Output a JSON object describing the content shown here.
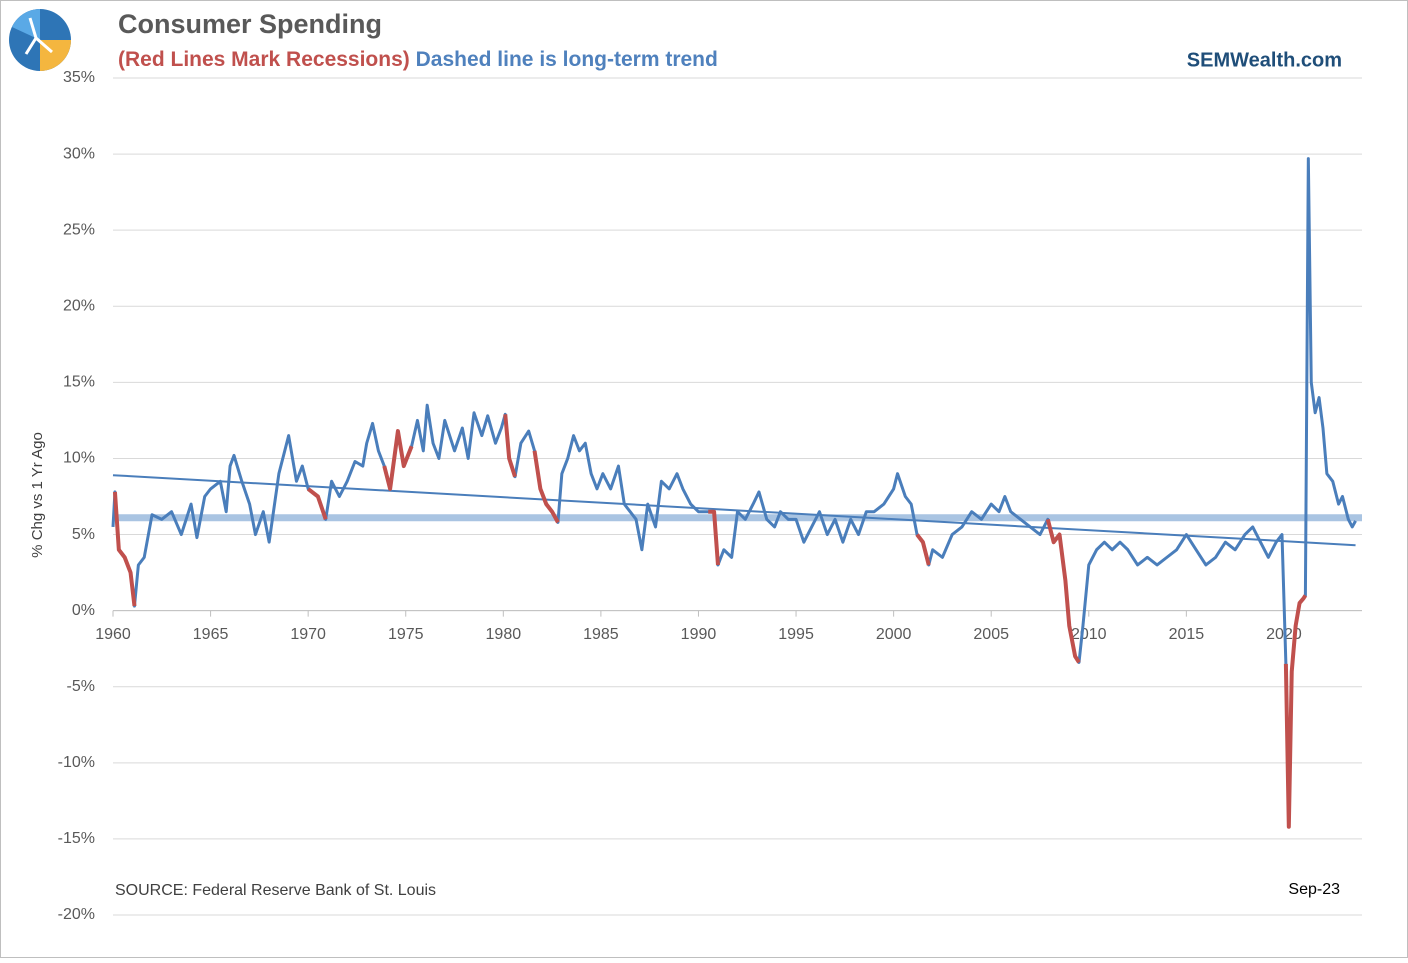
{
  "chart_data": {
    "type": "line",
    "title": "Consumer Spending",
    "subtitle_recessions": "(Red Lines Mark Recessions)",
    "subtitle_trend": "Dashed line is long-term trend",
    "brand": "SEMWealth.com",
    "y_label": "% Chg vs 1 Yr Ago",
    "source": "SOURCE:  Federal Reserve Bank of St. Louis",
    "last_date_label": "Sep-23",
    "xlim": [
      1960,
      2024
    ],
    "xticks": [
      1960,
      1965,
      1970,
      1975,
      1980,
      1985,
      1990,
      1995,
      2000,
      2005,
      2010,
      2015,
      2020
    ],
    "ylim": [
      -20,
      35
    ],
    "yticks": [
      {
        "value": -20,
        "label": "-20%"
      },
      {
        "value": -15,
        "label": "-15%"
      },
      {
        "value": -10,
        "label": "-10%"
      },
      {
        "value": -5,
        "label": "-5%"
      },
      {
        "value": 0,
        "label": "0%"
      },
      {
        "value": 5,
        "label": "5%"
      },
      {
        "value": 10,
        "label": "10%"
      },
      {
        "value": 15,
        "label": "15%"
      },
      {
        "value": 20,
        "label": "20%"
      },
      {
        "value": 25,
        "label": "25%"
      },
      {
        "value": 30,
        "label": "30%"
      },
      {
        "value": 35,
        "label": "35%"
      }
    ],
    "grid": true,
    "color": "#4a7ebb",
    "recession_color": "#c0504d",
    "recessions": [
      [
        1960.1,
        1961.1
      ],
      [
        1969.9,
        1970.9
      ],
      [
        1973.9,
        1975.3
      ],
      [
        1980.0,
        1980.6
      ],
      [
        1981.5,
        1982.9
      ],
      [
        1990.5,
        1991.1
      ],
      [
        2001.2,
        2001.9
      ],
      [
        2007.9,
        2009.5
      ],
      [
        2020.1,
        2021.1
      ]
    ],
    "x": [
      1960.0,
      1960.1,
      1960.3,
      1960.6,
      1960.9,
      1961.1,
      1961.3,
      1961.6,
      1962.0,
      1962.5,
      1963.0,
      1963.5,
      1964.0,
      1964.3,
      1964.7,
      1965.0,
      1965.5,
      1965.8,
      1966.0,
      1966.2,
      1966.6,
      1967.0,
      1967.3,
      1967.7,
      1968.0,
      1968.5,
      1968.8,
      1969.0,
      1969.4,
      1969.7,
      1970.0,
      1970.5,
      1970.9,
      1971.2,
      1971.6,
      1972.0,
      1972.4,
      1972.8,
      1973.0,
      1973.3,
      1973.6,
      1973.9,
      1974.2,
      1974.6,
      1974.9,
      1975.3,
      1975.6,
      1975.9,
      1976.1,
      1976.4,
      1976.7,
      1977.0,
      1977.5,
      1977.9,
      1978.2,
      1978.5,
      1978.9,
      1979.2,
      1979.6,
      1979.9,
      1980.1,
      1980.3,
      1980.6,
      1980.9,
      1981.3,
      1981.6,
      1981.9,
      1982.2,
      1982.5,
      1982.8,
      1983.0,
      1983.3,
      1983.6,
      1983.9,
      1984.2,
      1984.5,
      1984.8,
      1985.1,
      1985.5,
      1985.9,
      1986.2,
      1986.5,
      1986.8,
      1987.1,
      1987.4,
      1987.8,
      1988.1,
      1988.5,
      1988.9,
      1989.2,
      1989.6,
      1990.0,
      1990.5,
      1990.8,
      1991.0,
      1991.3,
      1991.7,
      1992.0,
      1992.4,
      1992.8,
      1993.1,
      1993.5,
      1993.9,
      1994.2,
      1994.6,
      1995.0,
      1995.4,
      1995.8,
      1996.2,
      1996.6,
      1997.0,
      1997.4,
      1997.8,
      1998.2,
      1998.6,
      1999.0,
      1999.5,
      2000.0,
      2000.2,
      2000.6,
      2000.9,
      2001.2,
      2001.5,
      2001.8,
      2002.0,
      2002.5,
      2003.0,
      2003.5,
      2004.0,
      2004.5,
      2005.0,
      2005.4,
      2005.7,
      2006.0,
      2006.5,
      2007.0,
      2007.5,
      2007.9,
      2008.2,
      2008.5,
      2008.8,
      2009.0,
      2009.3,
      2009.5,
      2009.7,
      2010.0,
      2010.4,
      2010.8,
      2011.2,
      2011.6,
      2012.0,
      2012.5,
      2013.0,
      2013.5,
      2014.0,
      2014.5,
      2015.0,
      2015.5,
      2016.0,
      2016.5,
      2017.0,
      2017.5,
      2018.0,
      2018.4,
      2018.8,
      2019.2,
      2019.6,
      2019.9,
      2020.1,
      2020.25,
      2020.4,
      2020.6,
      2020.8,
      2021.0,
      2021.1,
      2021.25,
      2021.4,
      2021.6,
      2021.8,
      2022.0,
      2022.2,
      2022.5,
      2022.8,
      2023.0,
      2023.3,
      2023.5,
      2023.67
    ],
    "values": [
      5.5,
      7.8,
      4.0,
      3.5,
      2.5,
      0.3,
      3.0,
      3.5,
      6.3,
      6.0,
      6.5,
      5.0,
      7.0,
      4.8,
      7.5,
      8.0,
      8.5,
      6.5,
      9.5,
      10.2,
      8.5,
      7.0,
      5.0,
      6.5,
      4.5,
      9.0,
      10.5,
      11.5,
      8.5,
      9.5,
      8.0,
      7.5,
      6.0,
      8.5,
      7.5,
      8.5,
      9.8,
      9.5,
      11.0,
      12.3,
      10.5,
      9.5,
      8.0,
      11.8,
      9.5,
      10.8,
      12.5,
      10.5,
      13.5,
      11.0,
      10.0,
      12.5,
      10.5,
      12.0,
      10.0,
      13.0,
      11.5,
      12.8,
      11.0,
      12.0,
      12.9,
      10.0,
      8.8,
      11.0,
      11.8,
      10.5,
      8.0,
      7.0,
      6.5,
      5.8,
      9.0,
      10.0,
      11.5,
      10.5,
      11.0,
      9.0,
      8.0,
      9.0,
      8.0,
      9.5,
      7.0,
      6.5,
      6.0,
      4.0,
      7.0,
      5.5,
      8.5,
      8.0,
      9.0,
      8.0,
      7.0,
      6.5,
      6.5,
      6.5,
      3.0,
      4.0,
      3.5,
      6.5,
      6.0,
      7.0,
      7.8,
      6.0,
      5.5,
      6.5,
      6.0,
      6.0,
      4.5,
      5.5,
      6.5,
      5.0,
      6.0,
      4.5,
      6.0,
      5.0,
      6.5,
      6.5,
      7.0,
      8.0,
      9.0,
      7.5,
      7.0,
      5.0,
      4.5,
      3.0,
      4.0,
      3.5,
      5.0,
      5.5,
      6.5,
      6.0,
      7.0,
      6.5,
      7.5,
      6.5,
      6.0,
      5.5,
      5.0,
      6.0,
      4.5,
      5.0,
      2.0,
      -1.0,
      -3.0,
      -3.4,
      -1.0,
      3.0,
      4.0,
      4.5,
      4.0,
      4.5,
      4.0,
      3.0,
      3.5,
      3.0,
      3.5,
      4.0,
      5.0,
      4.0,
      3.0,
      3.5,
      4.5,
      4.0,
      5.0,
      5.5,
      4.5,
      3.5,
      4.5,
      5.0,
      -3.5,
      -14.2,
      -4.0,
      -1.0,
      0.5,
      0.8,
      1.0,
      29.7,
      15.0,
      13.0,
      14.0,
      12.0,
      9.0,
      8.5,
      7.0,
      7.5,
      6.0,
      5.5,
      5.9
    ],
    "trend": {
      "x": [
        1960,
        2023.67
      ],
      "values": [
        8.9,
        4.3
      ],
      "color": "#4a7ebb"
    },
    "average": 6.1,
    "average_color": "#a9c4e2"
  }
}
